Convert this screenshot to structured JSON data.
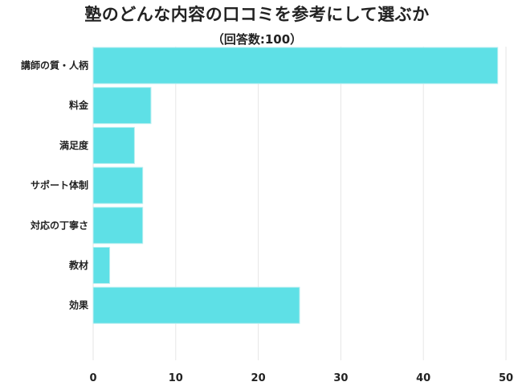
{
  "chart_data": {
    "type": "bar",
    "orientation": "horizontal",
    "title": "塾のどんな内容の口コミを参考にして選ぶか",
    "subtitle": "（回答数:100）",
    "categories": [
      "講師の質・人柄",
      "料金",
      "満足度",
      "サポート体制",
      "対応の丁寧さ",
      "教材",
      "効果"
    ],
    "values": [
      49,
      7,
      5,
      6,
      6,
      2,
      25
    ],
    "xlim": [
      0,
      50
    ],
    "xticks": [
      "0",
      "10",
      "20",
      "30",
      "40",
      "50"
    ],
    "grid": true,
    "bar_color": "#5ee0e6",
    "bar_border_color": "#b9eef0",
    "grid_color": "#e6e6e6"
  }
}
